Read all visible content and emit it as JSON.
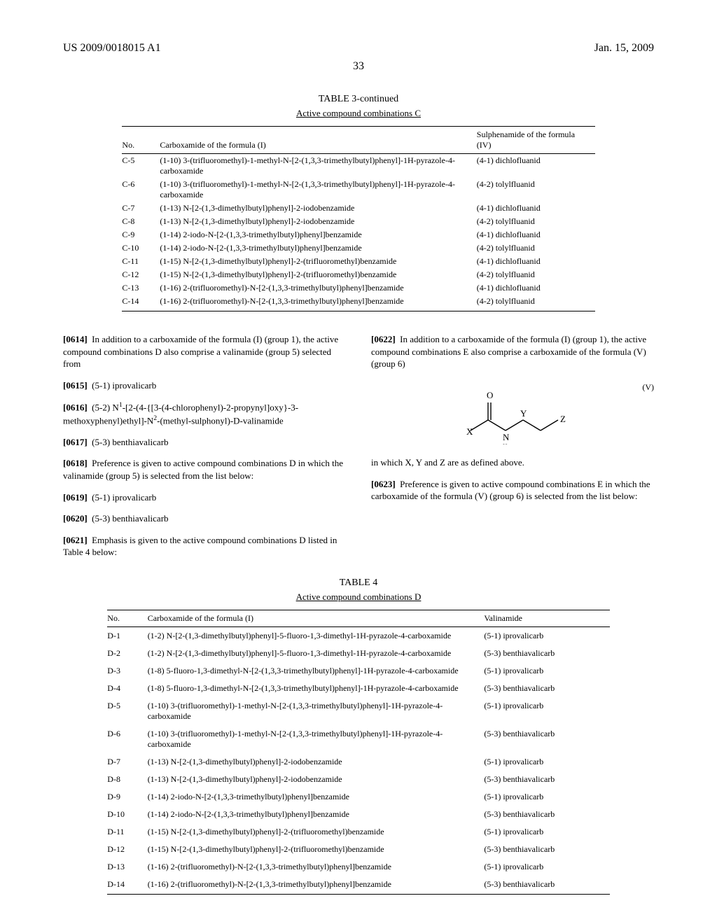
{
  "header": {
    "left": "US 2009/0018015 A1",
    "right": "Jan. 15, 2009"
  },
  "page_number": "33",
  "table3": {
    "caption": "TABLE 3-continued",
    "subcaption": "Active compound combinations C",
    "col_no": "No.",
    "col_mid": "Carboxamide of the formula (I)",
    "col_right": "Sulphenamide of the formula (IV)",
    "rows": [
      {
        "no": "C-5",
        "mid": "(1-10) 3-(trifluoromethyl)-1-methyl-N-[2-(1,3,3-trimethylbutyl)phenyl]-1H-pyrazole-4-carboxamide",
        "right": "(4-1) dichlofluanid"
      },
      {
        "no": "C-6",
        "mid": "(1-10) 3-(trifluoromethyl)-1-methyl-N-[2-(1,3,3-trimethylbutyl)phenyl]-1H-pyrazole-4-carboxamide",
        "right": "(4-2) tolylfluanid"
      },
      {
        "no": "C-7",
        "mid": "(1-13) N-[2-(1,3-dimethylbutyl)phenyl]-2-iodobenzamide",
        "right": "(4-1) dichlofluanid"
      },
      {
        "no": "C-8",
        "mid": "(1-13) N-[2-(1,3-dimethylbutyl)phenyl]-2-iodobenzamide",
        "right": "(4-2) tolylfluanid"
      },
      {
        "no": "C-9",
        "mid": "(1-14) 2-iodo-N-[2-(1,3,3-trimethylbutyl)phenyl]benzamide",
        "right": "(4-1) dichlofluanid"
      },
      {
        "no": "C-10",
        "mid": "(1-14) 2-iodo-N-[2-(1,3,3-trimethylbutyl)phenyl]benzamide",
        "right": "(4-2) tolylfluanid"
      },
      {
        "no": "C-11",
        "mid": "(1-15) N-[2-(1,3-dimethylbutyl)phenyl]-2-(trifluoromethyl)benzamide",
        "right": "(4-1) dichlofluanid"
      },
      {
        "no": "C-12",
        "mid": "(1-15) N-[2-(1,3-dimethylbutyl)phenyl]-2-(trifluoromethyl)benzamide",
        "right": "(4-2) tolylfluanid"
      },
      {
        "no": "C-13",
        "mid": "(1-16) 2-(trifluoromethyl)-N-[2-(1,3,3-trimethylbutyl)phenyl]benzamide",
        "right": "(4-1) dichlofluanid"
      },
      {
        "no": "C-14",
        "mid": "(1-16) 2-(trifluoromethyl)-N-[2-(1,3,3-trimethylbutyl)phenyl]benzamide",
        "right": "(4-2) tolylfluanid"
      }
    ]
  },
  "leftcol": {
    "p0614": "In addition to a carboxamide of the formula (I) (group 1), the active compound combinations D also comprise a valinamide (group 5) selected from",
    "p0615": "(5-1) iprovalicarb",
    "p0616_pre": "(5-2) N",
    "p0616_mid": "-[2-(4-{[3-(4-chlorophenyl)-2-propynyl]oxy}-3-methoxyphenyl)ethyl]-N",
    "p0616_post": "-(methyl-sulphonyl)-D-valinamide",
    "p0617": "(5-3) benthiavalicarb",
    "p0618": "Preference is given to active compound combinations D in which the valinamide (group 5) is selected from the list below:",
    "p0619": "(5-1) iprovalicarb",
    "p0620": "(5-3) benthiavalicarb",
    "p0621": "Emphasis is given to the active compound combinations D listed in Table 4 below:"
  },
  "rightcol": {
    "p0622": "In addition to a carboxamide of the formula (I) (group 1), the active compound combinations E also comprise a carboxamide of the formula (V) (group 6)",
    "formula_label": "(V)",
    "p_below": "in which X, Y and Z are as defined above.",
    "p0623": "Preference is given to active compound combinations E in which the carboxamide of the formula (V) (group 6) is selected from the list below:"
  },
  "table4": {
    "caption": "TABLE 4",
    "subcaption": "Active compound combinations D",
    "col_no": "No.",
    "col_mid": "Carboxamide of the formula (I)",
    "col_right": "Valinamide",
    "rows": [
      {
        "no": "D-1",
        "mid": "(1-2) N-[2-(1,3-dimethylbutyl)phenyl]-5-fluoro-1,3-dimethyl-1H-pyrazole-4-carboxamide",
        "right": "(5-1) iprovalicarb"
      },
      {
        "no": "D-2",
        "mid": "(1-2) N-[2-(1,3-dimethylbutyl)phenyl]-5-fluoro-1,3-dimethyl-1H-pyrazole-4-carboxamide",
        "right": "(5-3) benthiavalicarb"
      },
      {
        "no": "D-3",
        "mid": "(1-8) 5-fluoro-1,3-dimethyl-N-[2-(1,3,3-trimethylbutyl)phenyl]-1H-pyrazole-4-carboxamide",
        "right": "(5-1) iprovalicarb"
      },
      {
        "no": "D-4",
        "mid": "(1-8) 5-fluoro-1,3-dimethyl-N-[2-(1,3,3-trimethylbutyl)phenyl]-1H-pyrazole-4-carboxamide",
        "right": "(5-3) benthiavalicarb"
      },
      {
        "no": "D-5",
        "mid": "(1-10) 3-(trifluoromethyl)-1-methyl-N-[2-(1,3,3-trimethylbutyl)phenyl]-1H-pyrazole-4-carboxamide",
        "right": "(5-1) iprovalicarb"
      },
      {
        "no": "D-6",
        "mid": "(1-10) 3-(trifluoromethyl)-1-methyl-N-[2-(1,3,3-trimethylbutyl)phenyl]-1H-pyrazole-4-carboxamide",
        "right": "(5-3) benthiavalicarb"
      },
      {
        "no": "D-7",
        "mid": "(1-13) N-[2-(1,3-dimethylbutyl)phenyl]-2-iodobenzamide",
        "right": "(5-1) iprovalicarb"
      },
      {
        "no": "D-8",
        "mid": "(1-13) N-[2-(1,3-dimethylbutyl)phenyl]-2-iodobenzamide",
        "right": "(5-3) benthiavalicarb"
      },
      {
        "no": "D-9",
        "mid": "(1-14) 2-iodo-N-[2-(1,3,3-trimethylbutyl)phenyl]benzamide",
        "right": "(5-1) iprovalicarb"
      },
      {
        "no": "D-10",
        "mid": "(1-14) 2-iodo-N-[2-(1,3,3-trimethylbutyl)phenyl]benzamide",
        "right": "(5-3) benthiavalicarb"
      },
      {
        "no": "D-11",
        "mid": "(1-15) N-[2-(1,3-dimethylbutyl)phenyl]-2-(trifluoromethyl)benzamide",
        "right": "(5-1) iprovalicarb"
      },
      {
        "no": "D-12",
        "mid": "(1-15) N-[2-(1,3-dimethylbutyl)phenyl]-2-(trifluoromethyl)benzamide",
        "right": "(5-3) benthiavalicarb"
      },
      {
        "no": "D-13",
        "mid": "(1-16) 2-(trifluoromethyl)-N-[2-(1,3,3-trimethylbutyl)phenyl]benzamide",
        "right": "(5-1) iprovalicarb"
      },
      {
        "no": "D-14",
        "mid": "(1-16) 2-(trifluoromethyl)-N-[2-(1,3,3-trimethylbutyl)phenyl]benzamide",
        "right": "(5-3) benthiavalicarb"
      }
    ]
  },
  "labels": {
    "n0614": "[0614]",
    "n0615": "[0615]",
    "n0616": "[0616]",
    "n0617": "[0617]",
    "n0618": "[0618]",
    "n0619": "[0619]",
    "n0620": "[0620]",
    "n0621": "[0621]",
    "n0622": "[0622]",
    "n0623": "[0623]"
  }
}
